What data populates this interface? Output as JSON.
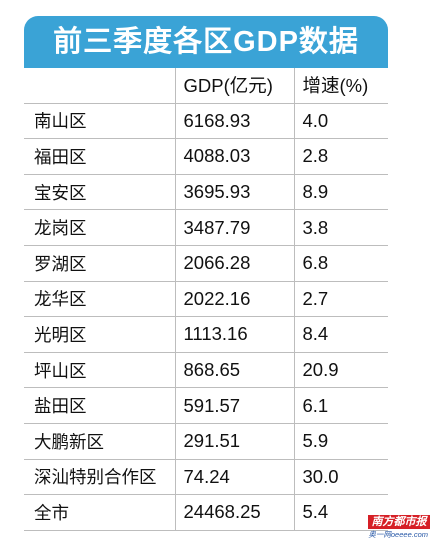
{
  "title": "前三季度各区GDP数据",
  "table": {
    "headers": [
      "",
      "GDP(亿元)",
      "增速(%)"
    ],
    "rows": [
      {
        "district": "南山区",
        "gdp": "6168.93",
        "growth": "4.0"
      },
      {
        "district": "福田区",
        "gdp": "4088.03",
        "growth": "2.8"
      },
      {
        "district": "宝安区",
        "gdp": "3695.93",
        "growth": "8.9"
      },
      {
        "district": "龙岗区",
        "gdp": "3487.79",
        "growth": "3.8"
      },
      {
        "district": "罗湖区",
        "gdp": "2066.28",
        "growth": "6.8"
      },
      {
        "district": "龙华区",
        "gdp": "2022.16",
        "growth": "2.7"
      },
      {
        "district": "光明区",
        "gdp": "1113.16",
        "growth": "8.4"
      },
      {
        "district": "坪山区",
        "gdp": "868.65",
        "growth": "20.9"
      },
      {
        "district": "盐田区",
        "gdp": "591.57",
        "growth": "6.1"
      },
      {
        "district": "大鹏新区",
        "gdp": "291.51",
        "growth": "5.9"
      },
      {
        "district": "深汕特别合作区",
        "gdp": "74.24",
        "growth": "30.0"
      },
      {
        "district": "全市",
        "gdp": "24468.25",
        "growth": "5.4"
      }
    ]
  },
  "watermark": {
    "brand": "南方都市报",
    "sub": "奥一网oeeee.com"
  },
  "colors": {
    "title_background": "#3aa3d6",
    "logo_red": "#d61f26"
  }
}
